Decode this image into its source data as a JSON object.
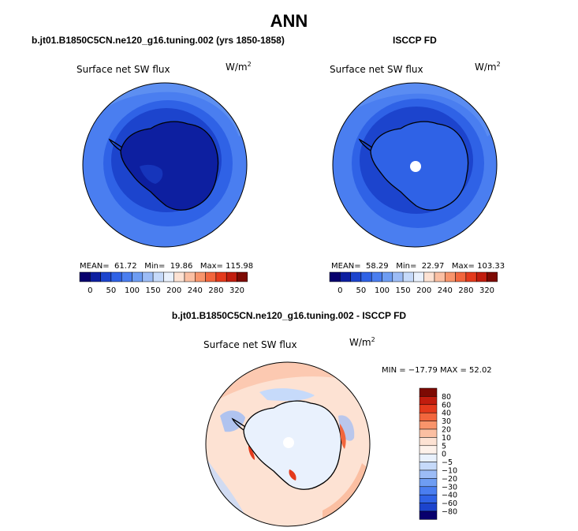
{
  "page": {
    "title": "ANN"
  },
  "panels": [
    {
      "case_label": "b.jt01.B1850C5CN.ne120_g16.tuning.002 (yrs 1850-1858)",
      "variable": "Surface net SW flux",
      "units": "W/m",
      "units_sup": "2",
      "mean_label": "MEAN=",
      "mean": "61.72",
      "min_label": "Min=",
      "min": "19.86",
      "max_label": "Max=",
      "max": "115.98"
    },
    {
      "case_label": "ISCCP FD",
      "variable": "Surface net SW flux",
      "units": "W/m",
      "units_sup": "2",
      "mean_label": "MEAN=",
      "mean": "58.29",
      "min_label": "Min=",
      "min": "22.97",
      "max_label": "Max=",
      "max": "103.33"
    },
    {
      "case_label": "b.jt01.B1850C5CN.ne120_g16.tuning.002 - ISCCP FD",
      "variable": "Surface net SW flux",
      "units": "W/m",
      "units_sup": "2",
      "minmax": "MIN = −17.79 MAX =  52.02"
    }
  ],
  "chart_data": [
    {
      "type": "heatmap",
      "projection": "south polar stereographic",
      "title": "b.jt01.B1850C5CN.ne120_g16.tuning.002 (yrs 1850-1858)",
      "variable": "Surface net SW flux",
      "units": "W/m2",
      "stats": {
        "mean": 61.72,
        "min": 19.86,
        "max": 115.98
      },
      "colorbar": {
        "orientation": "horizontal",
        "levels": [
          0,
          25,
          50,
          75,
          100,
          125,
          150,
          175,
          200,
          220,
          240,
          260,
          280,
          300,
          320
        ],
        "tick_labels": [
          "0",
          "50",
          "100",
          "150",
          "200",
          "240",
          "280",
          "320"
        ],
        "colors": [
          "#08006d",
          "#0d1fa0",
          "#1c44cd",
          "#2f62e6",
          "#4a7ef0",
          "#6e9df3",
          "#9cbcf6",
          "#c6dafa",
          "#e9f1fd",
          "#fde2d3",
          "#fbbfa2",
          "#f8946b",
          "#f2663d",
          "#e43a1c",
          "#c11d0e",
          "#7d0a03"
        ]
      }
    },
    {
      "type": "heatmap",
      "projection": "south polar stereographic",
      "title": "ISCCP FD",
      "variable": "Surface net SW flux",
      "units": "W/m2",
      "stats": {
        "mean": 58.29,
        "min": 22.97,
        "max": 103.33
      },
      "colorbar": {
        "orientation": "horizontal",
        "levels": [
          0,
          25,
          50,
          75,
          100,
          125,
          150,
          175,
          200,
          220,
          240,
          260,
          280,
          300,
          320
        ],
        "tick_labels": [
          "0",
          "50",
          "100",
          "150",
          "200",
          "240",
          "280",
          "320"
        ],
        "colors": [
          "#08006d",
          "#0d1fa0",
          "#1c44cd",
          "#2f62e6",
          "#4a7ef0",
          "#6e9df3",
          "#9cbcf6",
          "#c6dafa",
          "#e9f1fd",
          "#fde2d3",
          "#fbbfa2",
          "#f8946b",
          "#f2663d",
          "#e43a1c",
          "#c11d0e",
          "#7d0a03"
        ]
      }
    },
    {
      "type": "heatmap",
      "projection": "south polar stereographic",
      "title": "b.jt01.B1850C5CN.ne120_g16.tuning.002 - ISCCP FD",
      "variable": "Surface net SW flux",
      "units": "W/m2",
      "stats": {
        "min": -17.79,
        "max": 52.02
      },
      "colorbar": {
        "orientation": "vertical",
        "tick_labels": [
          "80",
          "60",
          "40",
          "30",
          "20",
          "10",
          "5",
          "0",
          "−5",
          "−10",
          "−20",
          "−30",
          "−40",
          "−60",
          "−80"
        ],
        "colors": [
          "#7d0a03",
          "#c11d0e",
          "#e43a1c",
          "#f2663d",
          "#f8946b",
          "#fbbfa2",
          "#fde2d3",
          "#fdf1ea",
          "#e9f1fd",
          "#c6dafa",
          "#9cbcf6",
          "#6e9df3",
          "#4a7ef0",
          "#2f62e6",
          "#1c44cd",
          "#08006d"
        ]
      }
    }
  ]
}
